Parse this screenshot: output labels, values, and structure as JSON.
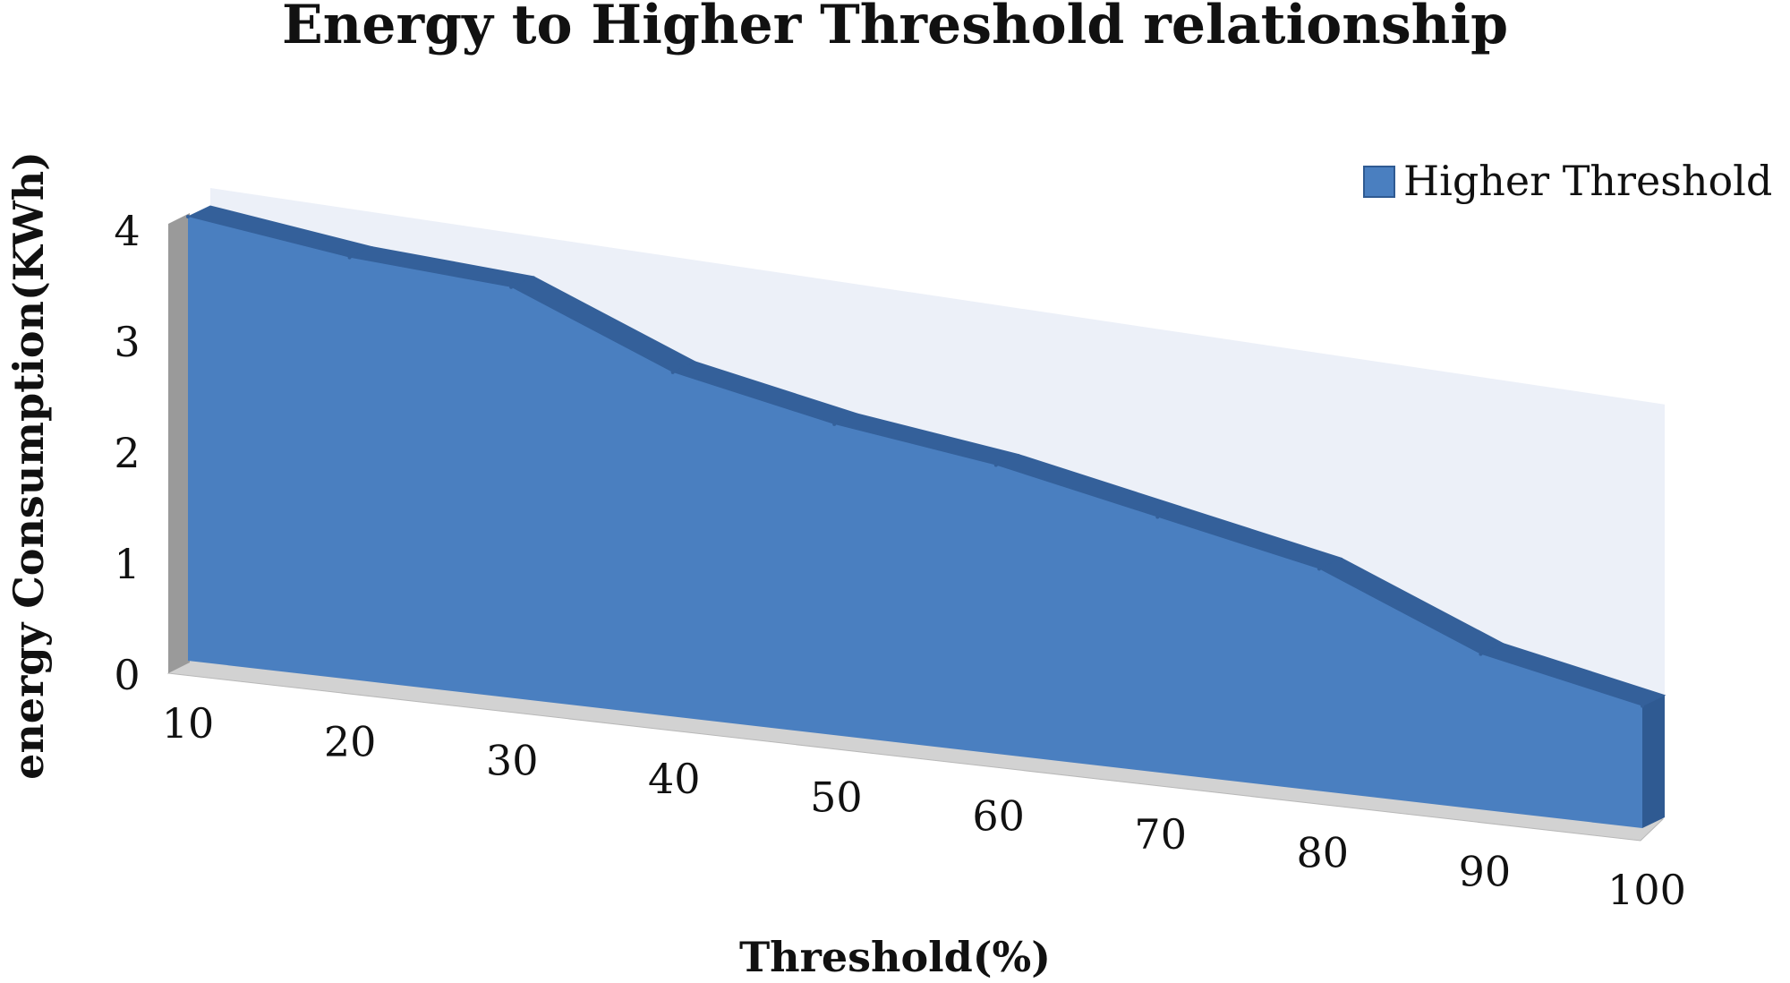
{
  "chart_data": {
    "type": "area",
    "title": "Energy to Higher Threshold relationship",
    "xlabel": "Threshold(%)",
    "ylabel": "energy Consumption(KWh)",
    "categories": [
      "10",
      "20",
      "30",
      "40",
      "50",
      "60",
      "70",
      "80",
      "90",
      "100"
    ],
    "x": [
      10,
      20,
      30,
      40,
      50,
      60,
      70,
      80,
      90,
      100
    ],
    "series": [
      {
        "name": "Higher Threshold",
        "values": [
          4.0,
          3.8,
          3.7,
          3.1,
          2.8,
          2.6,
          2.3,
          2.0,
          1.4,
          1.1
        ]
      }
    ],
    "ylim": [
      0,
      4
    ],
    "yticks": [
      "0",
      "1",
      "2",
      "3",
      "4"
    ],
    "legend_position": "top-right",
    "grid": false,
    "style": "3d",
    "colors": {
      "area_front": "#4a7fc0",
      "area_top": "#34609a",
      "area_side": "#2f5a92",
      "back_wall": "#e6ebf6",
      "floor": "#d2d2d2",
      "side_wall": "#9a9a9a"
    }
  }
}
